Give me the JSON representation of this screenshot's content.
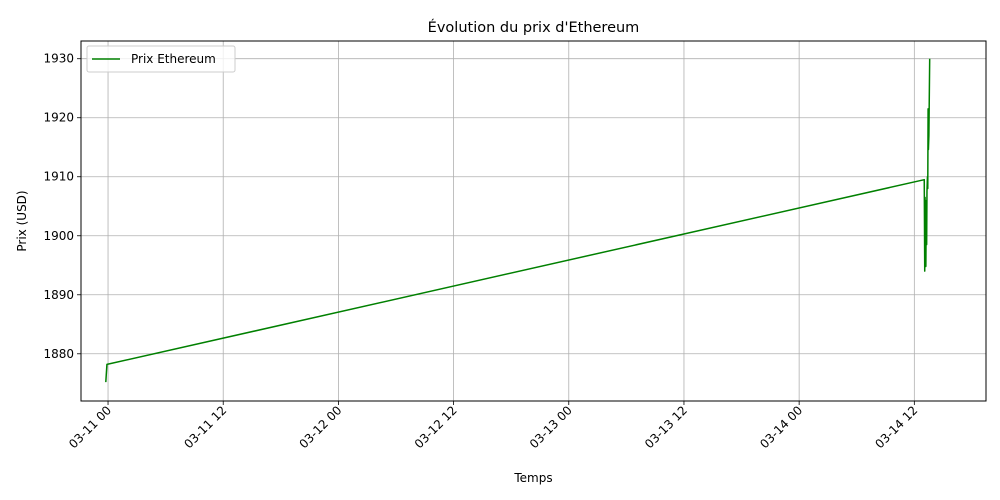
{
  "chart_data": {
    "type": "line",
    "title": "Évolution du prix d'Ethereum",
    "xlabel": "Temps",
    "ylabel": "Prix (USD)",
    "ylim": [
      1872,
      1933
    ],
    "xlim": [
      "2023-03-10 21:11",
      "2023-03-14 19:28"
    ],
    "grid": true,
    "legend_position": "upper-left",
    "x_ticks": [
      "03-11 00",
      "03-11 12",
      "03-12 00",
      "03-12 12",
      "03-13 00",
      "03-13 12",
      "03-14 00",
      "03-14 12"
    ],
    "y_ticks": [
      1880,
      1890,
      1900,
      1910,
      1920,
      1930
    ],
    "series": [
      {
        "name": "Prix Ethereum",
        "color": "#008000",
        "points": [
          {
            "x": "2023-03-10 23:46",
            "y": 1875.2
          },
          {
            "x": "2023-03-10 23:53",
            "y": 1878.2
          },
          {
            "x": "2023-03-14 13:02",
            "y": 1909.5
          },
          {
            "x": "2023-03-14 13:05",
            "y": 1894.0
          },
          {
            "x": "2023-03-14 13:07",
            "y": 1906.5
          },
          {
            "x": "2023-03-14 13:09",
            "y": 1895.0
          },
          {
            "x": "2023-03-14 13:10",
            "y": 1906.0
          },
          {
            "x": "2023-03-14 13:12",
            "y": 1894.8
          },
          {
            "x": "2023-03-14 13:14",
            "y": 1902.3
          },
          {
            "x": "2023-03-14 13:17",
            "y": 1898.5
          },
          {
            "x": "2023-03-14 13:19",
            "y": 1907.5
          },
          {
            "x": "2023-03-14 13:22",
            "y": 1910.0
          },
          {
            "x": "2023-03-14 13:24",
            "y": 1908.0
          },
          {
            "x": "2023-03-14 13:26",
            "y": 1921.5
          },
          {
            "x": "2023-03-14 13:28",
            "y": 1914.6
          },
          {
            "x": "2023-03-14 13:31",
            "y": 1917.0
          },
          {
            "x": "2023-03-14 13:36",
            "y": 1930.0
          }
        ]
      }
    ]
  }
}
